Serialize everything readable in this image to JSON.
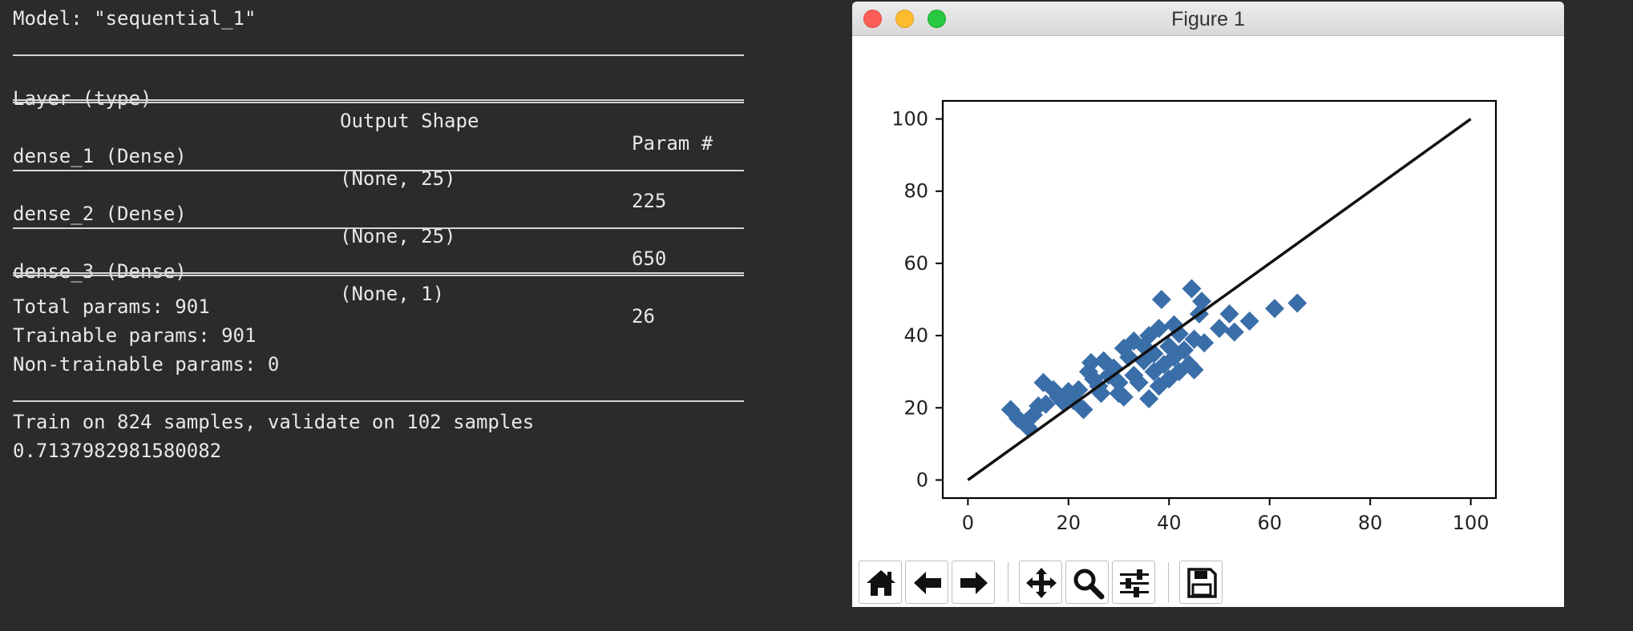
{
  "terminal": {
    "model_line": "Model: \"sequential_1\"",
    "headers": {
      "layer": "Layer (type)",
      "shape": "Output Shape",
      "params": "Param #"
    },
    "layers": [
      {
        "name": "dense_1 (Dense)",
        "shape": "(None, 25)",
        "params": "225"
      },
      {
        "name": "dense_2 (Dense)",
        "shape": "(None, 25)",
        "params": "650"
      },
      {
        "name": "dense_3 (Dense)",
        "shape": "(None, 1)",
        "params": "26"
      }
    ],
    "total": "Total params: 901",
    "trainable": "Trainable params: 901",
    "non_trainable": "Non-trainable params: 0",
    "train_info": "Train on 824 samples, validate on 102 samples",
    "score": "0.7137982981580082"
  },
  "window": {
    "title": "Figure 1"
  },
  "toolbar": [
    {
      "name": "home-icon"
    },
    {
      "name": "back-arrow-icon"
    },
    {
      "name": "forward-arrow-icon"
    },
    {
      "name": "pan-move-icon"
    },
    {
      "name": "zoom-magnifier-icon"
    },
    {
      "name": "configure-subplots-icon"
    },
    {
      "name": "save-floppy-icon"
    }
  ],
  "chart_data": {
    "type": "scatter",
    "title": "",
    "xlabel": "",
    "ylabel": "",
    "xlim": [
      -5,
      105
    ],
    "ylim": [
      -5,
      105
    ],
    "xticks": [
      0,
      20,
      40,
      60,
      80,
      100
    ],
    "yticks": [
      0,
      20,
      40,
      60,
      80,
      100
    ],
    "marker": "diamond",
    "marker_color": "#3a6ea8",
    "line_color": "#111111",
    "grid": false,
    "reference_line": {
      "x": [
        0,
        100
      ],
      "y": [
        0,
        100
      ]
    },
    "points": [
      [
        8.5,
        19.5
      ],
      [
        10,
        17
      ],
      [
        11.5,
        16
      ],
      [
        12,
        14.5
      ],
      [
        13,
        18
      ],
      [
        14,
        20.5
      ],
      [
        15.5,
        21
      ],
      [
        15,
        27
      ],
      [
        17,
        25
      ],
      [
        18,
        23
      ],
      [
        19,
        21.5
      ],
      [
        20,
        24.5
      ],
      [
        21,
        22
      ],
      [
        22,
        25
      ],
      [
        23,
        19.5
      ],
      [
        24,
        30
      ],
      [
        24.5,
        32.5
      ],
      [
        25,
        28
      ],
      [
        26,
        26
      ],
      [
        26.5,
        24
      ],
      [
        27,
        33
      ],
      [
        28,
        29
      ],
      [
        29,
        31
      ],
      [
        30,
        24
      ],
      [
        30,
        27
      ],
      [
        31,
        36.5
      ],
      [
        31,
        23
      ],
      [
        32,
        34
      ],
      [
        33,
        29
      ],
      [
        33,
        38.5
      ],
      [
        34,
        27
      ],
      [
        35,
        33
      ],
      [
        35,
        37
      ],
      [
        36,
        40
      ],
      [
        36,
        22.5
      ],
      [
        37,
        30
      ],
      [
        37,
        35
      ],
      [
        38,
        42
      ],
      [
        38,
        26
      ],
      [
        38.5,
        50
      ],
      [
        39,
        32
      ],
      [
        40,
        37
      ],
      [
        40,
        28
      ],
      [
        41,
        34
      ],
      [
        41,
        43
      ],
      [
        42,
        30
      ],
      [
        42,
        40.5
      ],
      [
        43,
        36
      ],
      [
        44,
        32
      ],
      [
        44.5,
        53
      ],
      [
        45,
        30.5
      ],
      [
        45,
        39
      ],
      [
        46,
        46
      ],
      [
        46.5,
        49.5
      ],
      [
        47,
        38
      ],
      [
        50,
        42
      ],
      [
        52,
        46
      ],
      [
        53,
        41
      ],
      [
        56,
        44
      ],
      [
        61,
        47.5
      ],
      [
        65.5,
        49
      ]
    ]
  }
}
